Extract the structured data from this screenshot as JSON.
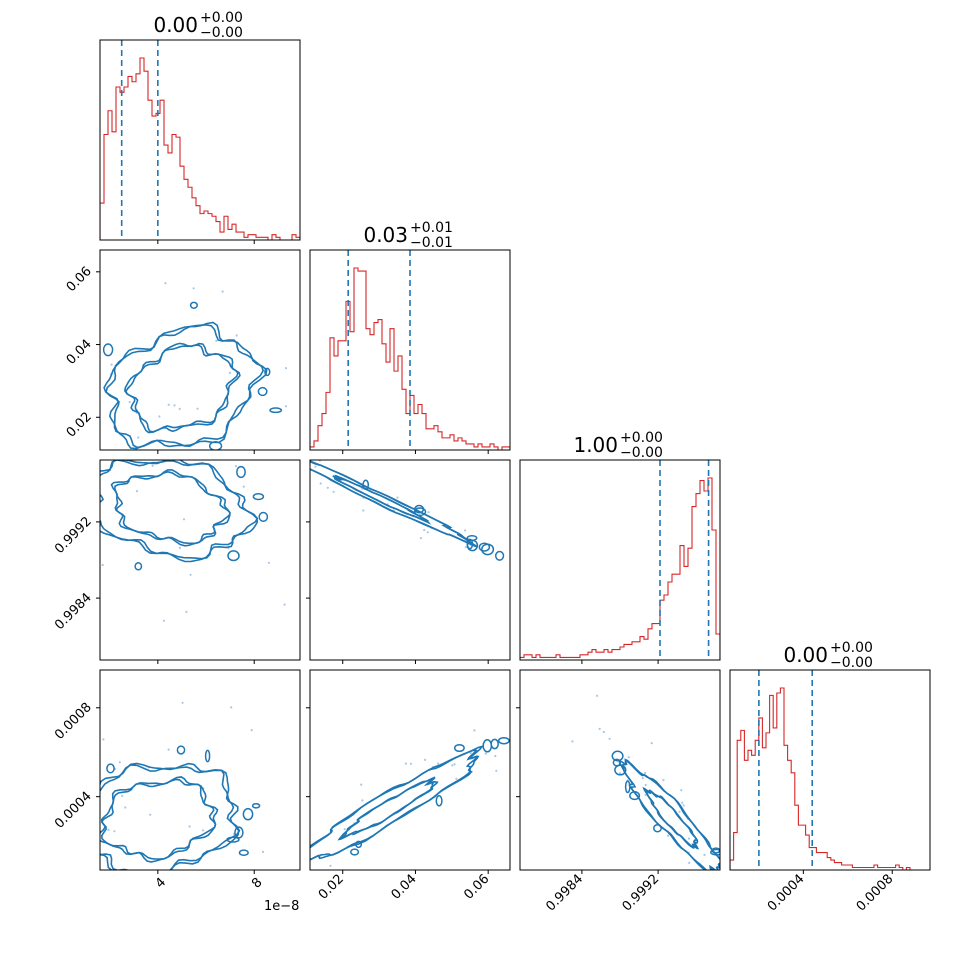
{
  "chart_data": {
    "type": "corner",
    "titles": [
      {
        "value": "0.00",
        "plus": "+0.00",
        "minus": "−0.00"
      },
      {
        "value": "0.03",
        "plus": "+0.01",
        "minus": "−0.01"
      },
      {
        "value": "1.00",
        "plus": "+0.00",
        "minus": "−0.00"
      },
      {
        "value": "0.00",
        "plus": "+0.00",
        "minus": "−0.00"
      }
    ],
    "parameters": [
      {
        "range": [
          1.6e-09,
          9.9e-09
        ],
        "ticks": [
          4e-09,
          8e-09
        ],
        "tick_labels": [
          "4",
          "8"
        ],
        "offset_text": "1e−8",
        "quantiles": [
          2.5e-09,
          4e-09
        ]
      },
      {
        "range": [
          0.011,
          0.066
        ],
        "ticks": [
          0.02,
          0.04,
          0.06
        ],
        "tick_labels": [
          "0.02",
          "0.04",
          "0.06"
        ],
        "quantiles": [
          0.0215,
          0.0385
        ]
      },
      {
        "range": [
          0.99775,
          0.99985
        ],
        "ticks": [
          0.9984,
          0.9992
        ],
        "tick_labels": [
          "0.9984",
          "0.9992"
        ],
        "quantiles": [
          0.99922,
          0.99973
        ]
      },
      {
        "range": [
          7e-05,
          0.00097
        ],
        "ticks": [
          0.0004,
          0.0008
        ],
        "tick_labels": [
          "0.0004",
          "0.0008"
        ],
        "quantiles": [
          0.0002,
          0.00044
        ]
      }
    ],
    "histograms": [
      {
        "bins": [
          1.6e-09,
          1.766e-09,
          1.932e-09,
          2.098e-09,
          2.264e-09,
          2.43e-09,
          2.596e-09,
          2.762e-09,
          2.928e-09,
          3.094e-09,
          3.26e-09,
          3.426e-09,
          3.592e-09,
          3.758e-09,
          3.924e-09,
          4.09e-09,
          4.256e-09,
          4.422e-09,
          4.588e-09,
          4.754e-09,
          4.92e-09,
          5.086e-09,
          5.252e-09,
          5.418e-09,
          5.584e-09,
          5.75e-09,
          5.916e-09,
          6.082e-09,
          6.248e-09,
          6.414e-09,
          6.58e-09,
          6.746e-09,
          6.912e-09,
          7.078e-09,
          7.244e-09,
          7.41e-09,
          7.576e-09,
          7.742e-09,
          7.908e-09,
          8.074e-09,
          8.24e-09,
          8.406e-09,
          8.572e-09,
          8.738e-09,
          8.904e-09,
          9.07e-09,
          9.236e-09,
          9.402e-09,
          9.568e-09,
          9.734e-09,
          9.9e-09
        ],
        "counts": [
          14,
          40,
          49,
          41,
          58,
          56,
          58,
          62,
          60,
          63,
          69,
          64,
          53,
          47,
          48,
          53,
          36,
          33,
          40,
          39,
          28,
          23,
          20,
          16,
          13,
          10,
          11,
          10,
          9,
          7,
          3,
          9,
          4,
          6,
          3,
          3,
          1,
          2,
          2,
          1,
          1,
          1,
          0,
          2,
          1,
          0,
          0,
          0,
          2,
          1
        ]
      },
      {
        "bins": [
          0.011,
          0.0121,
          0.0132,
          0.0143,
          0.0154,
          0.0165,
          0.0176,
          0.0187,
          0.0198,
          0.0209,
          0.022,
          0.0231,
          0.0242,
          0.0253,
          0.0264,
          0.0275,
          0.0286,
          0.0297,
          0.0308,
          0.0319,
          0.033,
          0.0341,
          0.0352,
          0.0363,
          0.0374,
          0.0385,
          0.0396,
          0.0407,
          0.0418,
          0.0429,
          0.044,
          0.0451,
          0.0462,
          0.0473,
          0.0484,
          0.0495,
          0.0506,
          0.0517,
          0.0528,
          0.0539,
          0.055,
          0.0561,
          0.0572,
          0.0583,
          0.0594,
          0.0605,
          0.0616,
          0.0627,
          0.0638,
          0.0649,
          0.066
        ],
        "counts": [
          1,
          3,
          8,
          12,
          19,
          37,
          31,
          36,
          36,
          49,
          39,
          60,
          59,
          59,
          40,
          38,
          42,
          43,
          35,
          29,
          40,
          26,
          31,
          20,
          12,
          18,
          12,
          15,
          12,
          7,
          7,
          8,
          6,
          4,
          4,
          5,
          3,
          4,
          3,
          2,
          2,
          1,
          2,
          1,
          1,
          2,
          1,
          0,
          1,
          1
        ]
      },
      {
        "bins": [
          0.99775,
          0.997792,
          0.997834,
          0.997876,
          0.997918,
          0.99796,
          0.998002,
          0.998044,
          0.998086,
          0.998128,
          0.99817,
          0.998212,
          0.998254,
          0.998296,
          0.998338,
          0.99838,
          0.998422,
          0.998464,
          0.998506,
          0.998548,
          0.99859,
          0.998632,
          0.998674,
          0.998716,
          0.998758,
          0.9988,
          0.998842,
          0.998884,
          0.998926,
          0.998968,
          0.99901,
          0.999052,
          0.999094,
          0.999136,
          0.999178,
          0.99922,
          0.999262,
          0.999304,
          0.999346,
          0.999388,
          0.99943,
          0.999472,
          0.999514,
          0.999556,
          0.999598,
          0.99964,
          0.999682,
          0.999724,
          0.999766,
          0.999808,
          0.99985
        ],
        "counts": [
          1,
          2,
          2,
          1,
          2,
          1,
          1,
          1,
          1,
          2,
          1,
          1,
          1,
          1,
          1,
          2,
          2,
          3,
          4,
          3,
          3,
          4,
          3,
          4,
          4,
          5,
          6,
          6,
          7,
          7,
          9,
          8,
          12,
          14,
          14,
          23,
          25,
          30,
          33,
          33,
          44,
          36,
          43,
          59,
          64,
          69,
          65,
          70,
          50,
          10
        ]
      },
      {
        "bins": [
          7e-05,
          8.62e-05,
          0.0001024,
          0.0001186,
          0.0001348,
          0.000151,
          0.0001672,
          0.0001834,
          0.0001996,
          0.0002158,
          0.000232,
          0.0002482,
          0.0002644,
          0.0002806,
          0.0002968,
          0.000313,
          0.0003292,
          0.0003454,
          0.0003616,
          0.0003778,
          0.000394,
          0.0004102,
          0.0004264,
          0.0004426,
          0.0004588,
          0.000475,
          0.0004912,
          0.0005074,
          0.0005236,
          0.0005398,
          0.000556,
          0.0005722,
          0.0005884,
          0.0006046,
          0.0006208,
          0.000637,
          0.0006532,
          0.0006694,
          0.0006856,
          0.0007018,
          0.000718,
          0.0007342,
          0.0007504,
          0.0007666,
          0.0007828,
          0.000799,
          0.0008152,
          0.0008314,
          0.0008476,
          0.0008638,
          0.00088
        ],
        "counts": [
          4,
          15,
          52,
          56,
          44,
          48,
          46,
          52,
          61,
          49,
          55,
          70,
          57,
          71,
          73,
          50,
          44,
          39,
          26,
          18,
          18,
          14,
          9,
          9,
          7,
          7,
          7,
          5,
          4,
          3,
          3,
          2,
          2,
          2,
          1,
          1,
          1,
          1,
          1,
          1,
          2,
          1,
          1,
          1,
          1,
          1,
          2,
          1,
          0,
          1
        ]
      }
    ],
    "pairs": [
      {
        "row": 1,
        "col": 0,
        "center": [
          5e-09,
          0.028
        ],
        "sigma": [
          1.5e-09,
          0.008
        ],
        "rho": 0.2,
        "levels": [
          0.7,
          1.0
        ]
      },
      {
        "row": 2,
        "col": 0,
        "center": [
          4.5e-09,
          0.99935
        ],
        "sigma": [
          1.6e-09,
          0.00025
        ],
        "rho": -0.2,
        "levels": [
          0.7,
          1.0
        ]
      },
      {
        "row": 2,
        "col": 1,
        "center": [
          0.03,
          0.99945
        ],
        "sigma": [
          0.012,
          0.00022
        ],
        "rho": -0.99,
        "levels": [
          0.5,
          1.0
        ]
      },
      {
        "row": 3,
        "col": 0,
        "center": [
          4e-09,
          0.0003
        ],
        "sigma": [
          1.6e-09,
          0.00012
        ],
        "rho": 0.15,
        "levels": [
          0.7,
          1.0
        ]
      },
      {
        "row": 3,
        "col": 1,
        "center": [
          0.033,
          0.00035
        ],
        "sigma": [
          0.012,
          0.00012
        ],
        "rho": 0.95,
        "levels": [
          0.5,
          1.0
        ]
      },
      {
        "row": 3,
        "col": 2,
        "center": [
          0.99935,
          0.0003
        ],
        "sigma": [
          0.00025,
          0.00012
        ],
        "rho": -0.93,
        "levels": [
          0.5,
          1.0
        ]
      }
    ],
    "colors": {
      "hist": "#d62728",
      "contour": "#1f77b4",
      "quantile": "#1f77b4",
      "points": "#a6c8e5"
    }
  }
}
